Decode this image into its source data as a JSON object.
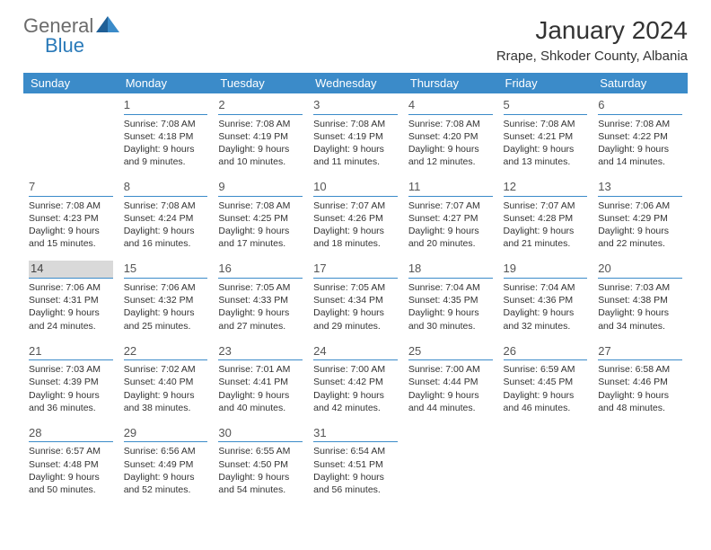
{
  "logo": {
    "text_gray": "General",
    "text_blue": "Blue"
  },
  "title": "January 2024",
  "location": "Rrape, Shkoder County, Albania",
  "colors": {
    "header_bg": "#3b8bc9",
    "header_text": "#ffffff",
    "day_border": "#3b8bc9",
    "today_bg": "#d9d9d9",
    "logo_gray": "#6b6b6b",
    "logo_blue": "#2a7ab9"
  },
  "weekdays": [
    "Sunday",
    "Monday",
    "Tuesday",
    "Wednesday",
    "Thursday",
    "Friday",
    "Saturday"
  ],
  "weeks": [
    [
      null,
      {
        "n": "1",
        "sr": "7:08 AM",
        "ss": "4:18 PM",
        "dl": "9 hours and 9 minutes."
      },
      {
        "n": "2",
        "sr": "7:08 AM",
        "ss": "4:19 PM",
        "dl": "9 hours and 10 minutes."
      },
      {
        "n": "3",
        "sr": "7:08 AM",
        "ss": "4:19 PM",
        "dl": "9 hours and 11 minutes."
      },
      {
        "n": "4",
        "sr": "7:08 AM",
        "ss": "4:20 PM",
        "dl": "9 hours and 12 minutes."
      },
      {
        "n": "5",
        "sr": "7:08 AM",
        "ss": "4:21 PM",
        "dl": "9 hours and 13 minutes."
      },
      {
        "n": "6",
        "sr": "7:08 AM",
        "ss": "4:22 PM",
        "dl": "9 hours and 14 minutes."
      }
    ],
    [
      {
        "n": "7",
        "sr": "7:08 AM",
        "ss": "4:23 PM",
        "dl": "9 hours and 15 minutes."
      },
      {
        "n": "8",
        "sr": "7:08 AM",
        "ss": "4:24 PM",
        "dl": "9 hours and 16 minutes."
      },
      {
        "n": "9",
        "sr": "7:08 AM",
        "ss": "4:25 PM",
        "dl": "9 hours and 17 minutes."
      },
      {
        "n": "10",
        "sr": "7:07 AM",
        "ss": "4:26 PM",
        "dl": "9 hours and 18 minutes."
      },
      {
        "n": "11",
        "sr": "7:07 AM",
        "ss": "4:27 PM",
        "dl": "9 hours and 20 minutes."
      },
      {
        "n": "12",
        "sr": "7:07 AM",
        "ss": "4:28 PM",
        "dl": "9 hours and 21 minutes."
      },
      {
        "n": "13",
        "sr": "7:06 AM",
        "ss": "4:29 PM",
        "dl": "9 hours and 22 minutes."
      }
    ],
    [
      {
        "n": "14",
        "sr": "7:06 AM",
        "ss": "4:31 PM",
        "dl": "9 hours and 24 minutes.",
        "today": true
      },
      {
        "n": "15",
        "sr": "7:06 AM",
        "ss": "4:32 PM",
        "dl": "9 hours and 25 minutes."
      },
      {
        "n": "16",
        "sr": "7:05 AM",
        "ss": "4:33 PM",
        "dl": "9 hours and 27 minutes."
      },
      {
        "n": "17",
        "sr": "7:05 AM",
        "ss": "4:34 PM",
        "dl": "9 hours and 29 minutes."
      },
      {
        "n": "18",
        "sr": "7:04 AM",
        "ss": "4:35 PM",
        "dl": "9 hours and 30 minutes."
      },
      {
        "n": "19",
        "sr": "7:04 AM",
        "ss": "4:36 PM",
        "dl": "9 hours and 32 minutes."
      },
      {
        "n": "20",
        "sr": "7:03 AM",
        "ss": "4:38 PM",
        "dl": "9 hours and 34 minutes."
      }
    ],
    [
      {
        "n": "21",
        "sr": "7:03 AM",
        "ss": "4:39 PM",
        "dl": "9 hours and 36 minutes."
      },
      {
        "n": "22",
        "sr": "7:02 AM",
        "ss": "4:40 PM",
        "dl": "9 hours and 38 minutes."
      },
      {
        "n": "23",
        "sr": "7:01 AM",
        "ss": "4:41 PM",
        "dl": "9 hours and 40 minutes."
      },
      {
        "n": "24",
        "sr": "7:00 AM",
        "ss": "4:42 PM",
        "dl": "9 hours and 42 minutes."
      },
      {
        "n": "25",
        "sr": "7:00 AM",
        "ss": "4:44 PM",
        "dl": "9 hours and 44 minutes."
      },
      {
        "n": "26",
        "sr": "6:59 AM",
        "ss": "4:45 PM",
        "dl": "9 hours and 46 minutes."
      },
      {
        "n": "27",
        "sr": "6:58 AM",
        "ss": "4:46 PM",
        "dl": "9 hours and 48 minutes."
      }
    ],
    [
      {
        "n": "28",
        "sr": "6:57 AM",
        "ss": "4:48 PM",
        "dl": "9 hours and 50 minutes."
      },
      {
        "n": "29",
        "sr": "6:56 AM",
        "ss": "4:49 PM",
        "dl": "9 hours and 52 minutes."
      },
      {
        "n": "30",
        "sr": "6:55 AM",
        "ss": "4:50 PM",
        "dl": "9 hours and 54 minutes."
      },
      {
        "n": "31",
        "sr": "6:54 AM",
        "ss": "4:51 PM",
        "dl": "9 hours and 56 minutes."
      },
      null,
      null,
      null
    ]
  ],
  "labels": {
    "sunrise": "Sunrise:",
    "sunset": "Sunset:",
    "daylight": "Daylight:"
  }
}
